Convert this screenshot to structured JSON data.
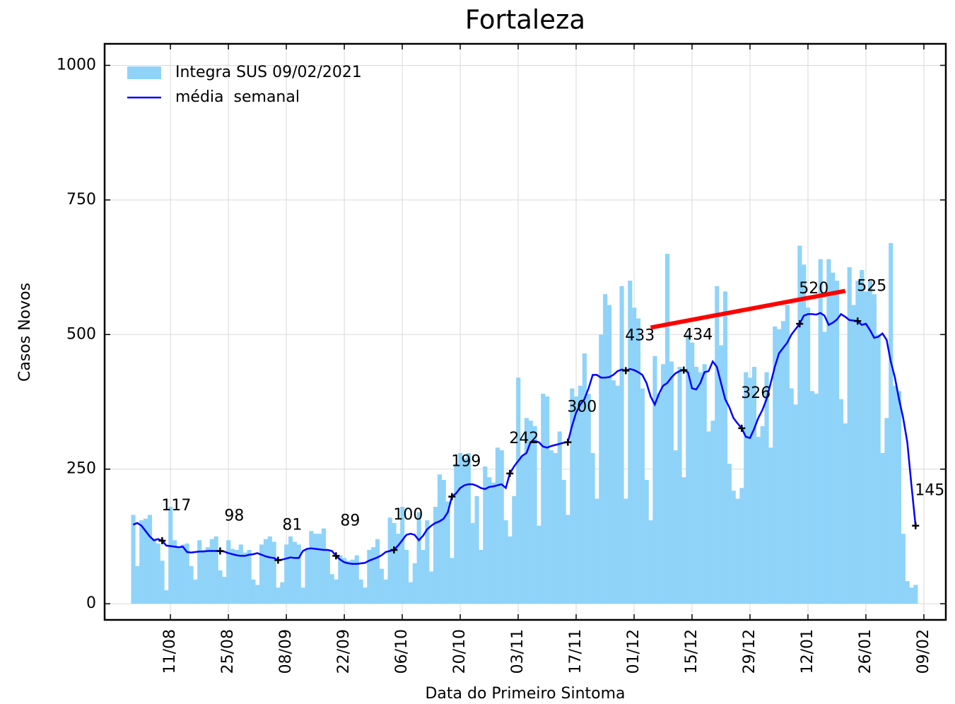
{
  "chart_data": {
    "type": "bar",
    "title": "Fortaleza",
    "x_label": "Data do Primeiro Sintoma",
    "y_label": "Casos Novos",
    "ylim": [
      -30,
      1040
    ],
    "yticks": [
      0,
      250,
      500,
      750,
      1000
    ],
    "grid": true,
    "legend": "upper left",
    "categories": [
      null,
      null,
      null,
      null,
      null,
      null,
      null,
      null,
      null,
      "11/08",
      null,
      null,
      null,
      null,
      null,
      null,
      null,
      null,
      null,
      null,
      null,
      null,
      null,
      "25/08",
      null,
      null,
      null,
      null,
      null,
      null,
      null,
      null,
      null,
      null,
      null,
      null,
      null,
      "08/09",
      null,
      null,
      null,
      null,
      null,
      null,
      null,
      null,
      null,
      null,
      null,
      null,
      null,
      "22/09",
      null,
      null,
      null,
      null,
      null,
      null,
      null,
      null,
      null,
      null,
      null,
      null,
      null,
      "06/10",
      null,
      null,
      null,
      null,
      null,
      null,
      null,
      null,
      null,
      null,
      null,
      null,
      null,
      "20/10",
      null,
      null,
      null,
      null,
      null,
      null,
      null,
      null,
      null,
      null,
      null,
      null,
      null,
      "03/11",
      null,
      null,
      null,
      null,
      null,
      null,
      null,
      null,
      null,
      null,
      null,
      null,
      null,
      "17/11",
      null,
      null,
      null,
      null,
      null,
      null,
      null,
      null,
      null,
      null,
      null,
      null,
      null,
      "01/12",
      null,
      null,
      null,
      null,
      null,
      null,
      null,
      null,
      null,
      null,
      null,
      null,
      null,
      "15/12",
      null,
      null,
      null,
      null,
      null,
      null,
      null,
      null,
      null,
      null,
      null,
      null,
      null,
      "29/12",
      null,
      null,
      null,
      null,
      null,
      null,
      null,
      null,
      null,
      null,
      null,
      null,
      null,
      "12/01",
      null,
      null,
      null,
      null,
      null,
      null,
      null,
      null,
      null,
      null,
      null,
      null,
      null,
      "26/01",
      null,
      null,
      null,
      null,
      null,
      null,
      null,
      null,
      null,
      null,
      null,
      null,
      null,
      "09/02"
    ],
    "series": [
      {
        "name": "Integra SUS 09/02/2021",
        "type": "bar",
        "color": "#8fd3f9",
        "values": [
          165,
          70,
          155,
          158,
          165,
          120,
          112,
          80,
          25,
          180,
          118,
          105,
          110,
          112,
          70,
          45,
          118,
          100,
          105,
          120,
          125,
          62,
          50,
          118,
          102,
          100,
          110,
          95,
          100,
          45,
          35,
          110,
          120,
          125,
          115,
          30,
          40,
          110,
          125,
          115,
          110,
          30,
          100,
          135,
          130,
          130,
          140,
          100,
          55,
          45,
          90,
          85,
          80,
          82,
          90,
          45,
          30,
          100,
          105,
          120,
          65,
          45,
          160,
          150,
          130,
          180,
          100,
          40,
          75,
          170,
          100,
          155,
          60,
          180,
          240,
          230,
          190,
          85,
          260,
          280,
          270,
          280,
          150,
          200,
          100,
          255,
          235,
          225,
          290,
          285,
          155,
          125,
          200,
          420,
          275,
          345,
          340,
          330,
          145,
          390,
          385,
          285,
          280,
          320,
          230,
          165,
          400,
          385,
          405,
          465,
          390,
          280,
          195,
          500,
          575,
          555,
          415,
          405,
          590,
          195,
          600,
          550,
          530,
          400,
          230,
          155,
          460,
          390,
          445,
          650,
          450,
          285,
          440,
          235,
          500,
          485,
          440,
          430,
          445,
          320,
          340,
          590,
          480,
          580,
          260,
          210,
          195,
          215,
          430,
          420,
          440,
          310,
          330,
          430,
          290,
          515,
          510,
          525,
          555,
          400,
          370,
          665,
          630,
          550,
          395,
          390,
          640,
          505,
          640,
          615,
          600,
          380,
          335,
          625,
          555,
          600,
          620,
          580,
          600,
          575,
          500,
          280,
          345,
          670,
          405,
          395,
          130,
          42,
          30,
          35,
          null,
          null
        ]
      },
      {
        "name": "média  semanal",
        "type": "line",
        "color": "#0000ff",
        "values": [
          147,
          150,
          145,
          135,
          125,
          118,
          120,
          117,
          108,
          107,
          106,
          105,
          106,
          96,
          95,
          96,
          97,
          97,
          98,
          98,
          98,
          98,
          97,
          94,
          92,
          90,
          89,
          89,
          91,
          92,
          94,
          91,
          88,
          86,
          85,
          81,
          82,
          84,
          86,
          85,
          85,
          98,
          102,
          103,
          102,
          101,
          100,
          100,
          98,
          89,
          82,
          77,
          75,
          74,
          74,
          75,
          76,
          80,
          83,
          86,
          90,
          96,
          98,
          100,
          108,
          118,
          128,
          130,
          128,
          118,
          126,
          138,
          145,
          150,
          153,
          158,
          170,
          199,
          205,
          215,
          220,
          222,
          222,
          219,
          215,
          213,
          217,
          218,
          220,
          222,
          215,
          242,
          255,
          265,
          275,
          280,
          300,
          302,
          300,
          292,
          290,
          293,
          295,
          297,
          299,
          300,
          330,
          355,
          370,
          380,
          400,
          425,
          425,
          420,
          420,
          421,
          425,
          432,
          435,
          433,
          436,
          434,
          430,
          425,
          410,
          385,
          370,
          390,
          405,
          410,
          420,
          428,
          432,
          434,
          430,
          400,
          398,
          410,
          430,
          432,
          450,
          440,
          410,
          380,
          365,
          345,
          335,
          326,
          310,
          308,
          325,
          345,
          360,
          380,
          410,
          440,
          465,
          475,
          485,
          500,
          510,
          520,
          535,
          538,
          538,
          537,
          540,
          535,
          518,
          522,
          528,
          538,
          533,
          527,
          526,
          525,
          518,
          520,
          508,
          494,
          496,
          502,
          490,
          450,
          420,
          380,
          345,
          300,
          220,
          145,
          null,
          null
        ]
      },
      {
        "type": "markers",
        "color": "#000000",
        "values": [
          null,
          null,
          null,
          null,
          null,
          null,
          null,
          117,
          null,
          null,
          null,
          null,
          null,
          null,
          null,
          null,
          null,
          null,
          null,
          null,
          null,
          98,
          null,
          null,
          null,
          null,
          null,
          null,
          null,
          null,
          null,
          null,
          null,
          null,
          null,
          81,
          null,
          null,
          null,
          null,
          null,
          null,
          null,
          null,
          null,
          null,
          null,
          null,
          null,
          89,
          null,
          null,
          null,
          null,
          null,
          null,
          null,
          null,
          null,
          null,
          null,
          null,
          null,
          100,
          null,
          null,
          null,
          null,
          null,
          null,
          null,
          null,
          null,
          null,
          null,
          null,
          null,
          199,
          null,
          null,
          null,
          null,
          null,
          null,
          null,
          null,
          null,
          null,
          null,
          null,
          null,
          242,
          null,
          null,
          null,
          null,
          null,
          null,
          null,
          null,
          null,
          null,
          null,
          null,
          null,
          300,
          null,
          null,
          null,
          null,
          null,
          null,
          null,
          null,
          null,
          null,
          null,
          null,
          null,
          433,
          null,
          null,
          null,
          null,
          null,
          null,
          null,
          null,
          null,
          null,
          null,
          null,
          null,
          434,
          null,
          null,
          null,
          null,
          null,
          null,
          null,
          null,
          null,
          null,
          null,
          null,
          null,
          326,
          null,
          null,
          null,
          null,
          null,
          null,
          null,
          null,
          null,
          null,
          null,
          null,
          null,
          520,
          null,
          null,
          null,
          null,
          null,
          null,
          null,
          null,
          null,
          null,
          null,
          null,
          null,
          525,
          null,
          null,
          null,
          null,
          null,
          null,
          null,
          null,
          null,
          null,
          null,
          null,
          null,
          145,
          null,
          null
        ]
      }
    ],
    "trend": {
      "color": "#ff0000",
      "x": [
        125,
        172
      ],
      "y": [
        513,
        581
      ]
    }
  }
}
